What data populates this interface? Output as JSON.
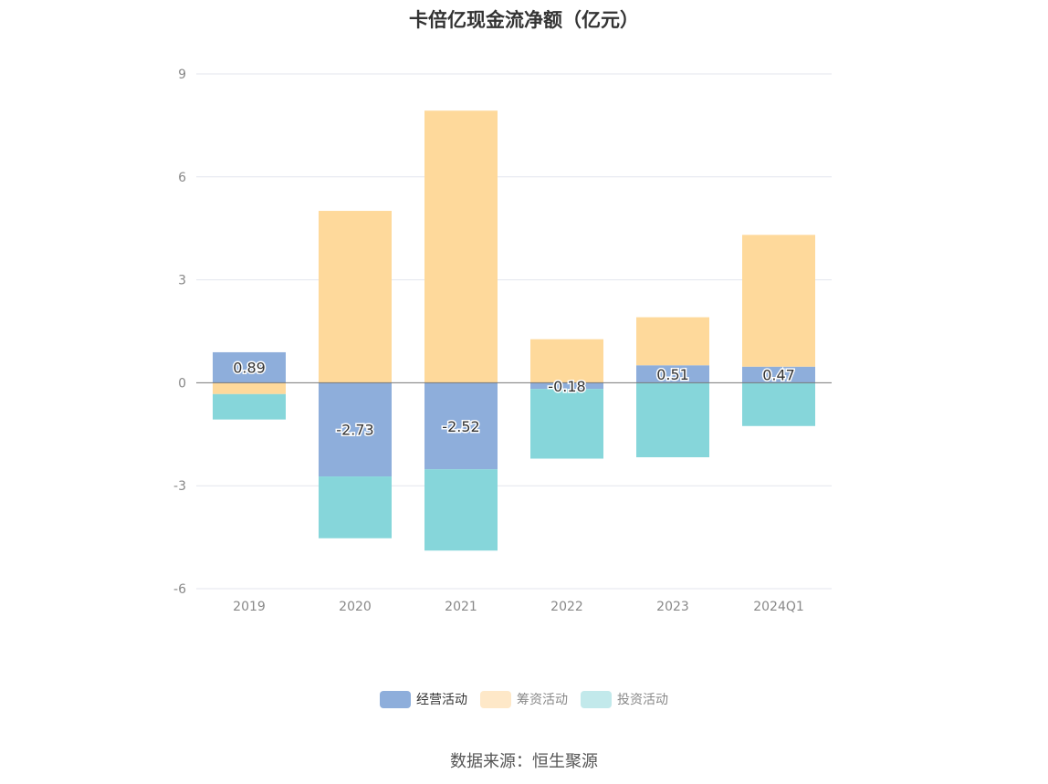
{
  "chart_data": {
    "type": "bar",
    "stacked": true,
    "title": "卡倍亿现金流净额（亿元）",
    "categories": [
      "2019",
      "2020",
      "2021",
      "2022",
      "2023",
      "2024Q1"
    ],
    "series": [
      {
        "name": "经营活动",
        "color": "#8eaedb",
        "values": [
          0.89,
          -2.73,
          -2.52,
          -0.18,
          0.51,
          0.47
        ]
      },
      {
        "name": "筹资活动",
        "color": "#fed99b",
        "values": [
          -0.33,
          5.01,
          7.93,
          1.27,
          1.4,
          3.84
        ]
      },
      {
        "name": "投资活动",
        "color": "#86d6da",
        "values": [
          -0.74,
          -1.8,
          -2.37,
          -2.03,
          -2.17,
          -1.26
        ]
      }
    ],
    "data_labels": [
      "0.89",
      "-2.73",
      "-2.52",
      "-0.18",
      "0.51",
      "0.47"
    ],
    "yticks": [
      -6,
      -3,
      0,
      3,
      6,
      9
    ],
    "ylim": [
      -6,
      9
    ],
    "grid": true,
    "legend_position": "bottom"
  },
  "legend": {
    "items": [
      {
        "label": "经营活动",
        "color": "#8eaedb"
      },
      {
        "label": "筹资活动",
        "color": "#fee8c8"
      },
      {
        "label": "投资活动",
        "color": "#c2e9eb"
      }
    ]
  },
  "source": "数据来源：恒生聚源"
}
